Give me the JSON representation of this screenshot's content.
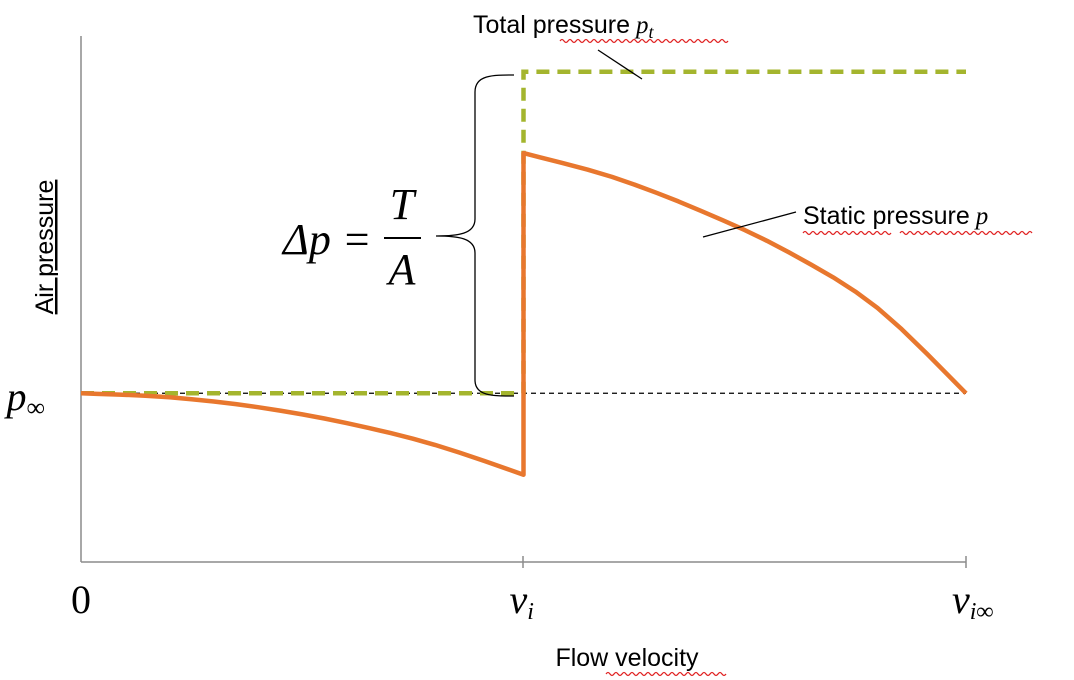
{
  "chart_data": {
    "type": "line",
    "xlabel": "Flow velocity",
    "ylabel": "Air pressure",
    "x_ticks": [
      {
        "label": "0",
        "sub": ""
      },
      {
        "label": "v",
        "sub": "i"
      },
      {
        "label": "v",
        "sub": "i∞"
      }
    ],
    "y_ticks": [
      {
        "label": "p",
        "sub": "∞"
      }
    ],
    "x": [
      0,
      0.1,
      0.2,
      0.3,
      0.4,
      0.5,
      0.5,
      0.6,
      0.7,
      0.8,
      0.9,
      1.0
    ],
    "series": [
      {
        "name": "Static pressure",
        "symbol": "p",
        "color": "#e8772e",
        "style": "solid",
        "points": [
          [
            0,
            0.0
          ],
          [
            0.1,
            -0.02
          ],
          [
            0.2,
            -0.07
          ],
          [
            0.3,
            -0.15
          ],
          [
            0.4,
            -0.26
          ],
          [
            0.5,
            -0.41
          ],
          [
            0.5,
            1.21
          ],
          [
            0.6,
            1.09
          ],
          [
            0.7,
            0.92
          ],
          [
            0.8,
            0.71
          ],
          [
            0.9,
            0.43
          ],
          [
            1.0,
            0.0
          ]
        ]
      },
      {
        "name": "Total pressure",
        "symbol": "p",
        "subscript": "t",
        "color": "#a4b52e",
        "style": "dashed",
        "points": [
          [
            0,
            0.0
          ],
          [
            0.5,
            0.0
          ],
          [
            0.5,
            1.62
          ],
          [
            1.0,
            1.62
          ]
        ]
      }
    ],
    "reference_line": {
      "y": 0.0,
      "style": "dashed",
      "color": "#000000"
    },
    "xlim": [
      0,
      1
    ],
    "ylim": [
      -0.85,
      1.8
    ],
    "grid": false,
    "annotations": {
      "brace_formula": {
        "lhs": "Δp =",
        "numerator": "T",
        "denominator": "A"
      },
      "total_pressure_label": "Total pressure",
      "total_pressure_symbol": "p",
      "total_pressure_subscript": "t",
      "static_pressure_label": "Static pressure",
      "static_pressure_symbol": "p"
    }
  }
}
